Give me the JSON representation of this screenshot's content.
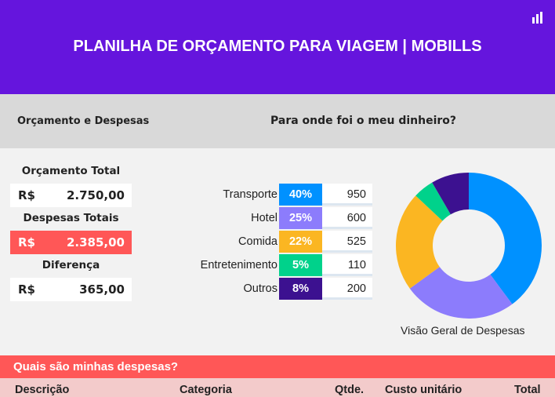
{
  "header": {
    "title": "PLANILHA DE ORÇAMENTO PARA VIAGEM | MOBILLS",
    "logo_icon": "bar-chart-icon"
  },
  "section": {
    "left": "Orçamento e Despesas",
    "right": "Para onde foi o meu dinheiro?"
  },
  "summary": {
    "budget_label": "Orçamento Total",
    "budget_currency": "R$",
    "budget_value": "2.750,00",
    "expenses_label": "Despesas Totais",
    "expenses_currency": "R$",
    "expenses_value": "2.385,00",
    "diff_label": "Diferença",
    "diff_currency": "R$",
    "diff_value": "365,00"
  },
  "categories": [
    {
      "name": "Transporte",
      "pct": "40%",
      "value": "950",
      "amount": 950,
      "color": "#0091ff"
    },
    {
      "name": "Hotel",
      "pct": "25%",
      "value": "600",
      "amount": 600,
      "color": "#8c7cfc"
    },
    {
      "name": "Comida",
      "pct": "22%",
      "value": "525",
      "amount": 525,
      "color": "#fbb622"
    },
    {
      "name": "Entretenimento",
      "pct": "5%",
      "value": "110",
      "amount": 110,
      "color": "#00d28b"
    },
    {
      "name": "Outros",
      "pct": "8%",
      "value": "200",
      "amount": 200,
      "color": "#3c1190"
    }
  ],
  "chart_caption": "Visão Geral de Despesas",
  "expenses_section": {
    "title": "Quais são minhas despesas?",
    "columns": [
      "Descrição",
      "Categoria",
      "Qtde.",
      "Custo unitário",
      "Total"
    ]
  }
}
